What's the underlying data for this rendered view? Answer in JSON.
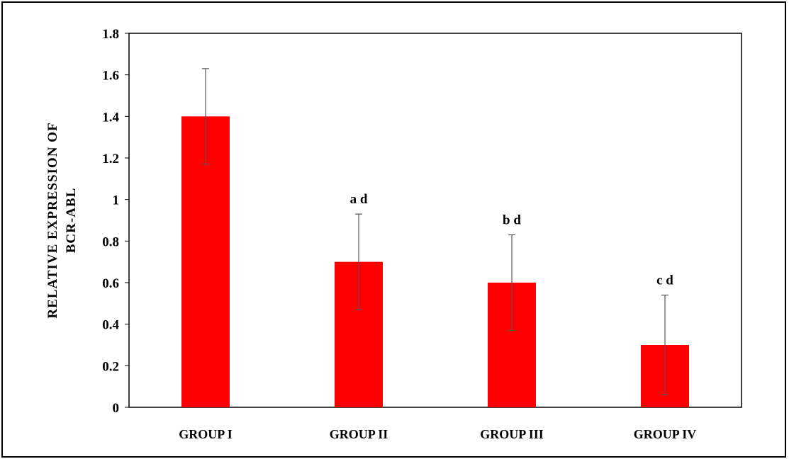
{
  "chart_data": {
    "type": "bar",
    "categories": [
      "GROUP I",
      "GROUP II",
      "GROUP III",
      "GROUP IV"
    ],
    "values": [
      1.4,
      0.7,
      0.6,
      0.3
    ],
    "error_bars": [
      0.23,
      0.23,
      0.23,
      0.24
    ],
    "significance_labels": [
      "",
      "a d",
      "b d",
      "c d"
    ],
    "ylabel_lines": [
      "RELATIVE  EXPRESSION  OF",
      "BCR-ABL"
    ],
    "xlabel": "",
    "title": "",
    "ylim": [
      0,
      1.8
    ],
    "yticks": [
      0,
      0.2,
      0.4,
      0.6,
      0.8,
      1,
      1.2,
      1.4,
      1.6,
      1.8
    ],
    "ytick_labels": [
      "0",
      "0.2",
      "0.4",
      "0.6",
      "0.8",
      "1",
      "1.2",
      "1.4",
      "1.6",
      "1.8"
    ],
    "grid": false,
    "legend": "none",
    "bar_color": "#ff0000",
    "error_bar_color": "#555555",
    "axis_color": "#000000"
  }
}
